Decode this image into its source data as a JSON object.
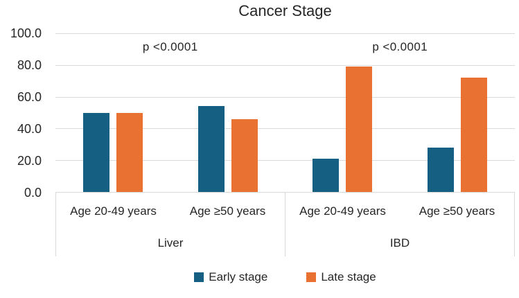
{
  "chart_data": {
    "type": "bar",
    "title": "Cancer Stage",
    "xlabel": "",
    "ylabel": "",
    "ylim": [
      0,
      100
    ],
    "yticks": [
      0,
      20,
      40,
      60,
      80,
      100
    ],
    "ytick_labels": [
      "0.0",
      "20.0",
      "40.0",
      "60.0",
      "80.0",
      "100.0"
    ],
    "grid": true,
    "legend_position": "bottom",
    "groups": [
      {
        "label": "Liver",
        "annotation": "p <0.0001",
        "categories": [
          "Age 20-49 years",
          "Age ≥50 years"
        ]
      },
      {
        "label": "IBD",
        "annotation": "p <0.0001",
        "categories": [
          "Age 20-49 years",
          "Age ≥50 years"
        ]
      }
    ],
    "series": [
      {
        "name": "Early stage",
        "color": "#156082",
        "values": [
          50,
          54,
          21,
          28
        ]
      },
      {
        "name": "Late stage",
        "color": "#E97132",
        "values": [
          50,
          46,
          79,
          72
        ]
      }
    ],
    "colors": {
      "early_stage": "#156082",
      "late_stage": "#E97132",
      "gridline": "#D9D9D9",
      "text": "#262626"
    }
  }
}
